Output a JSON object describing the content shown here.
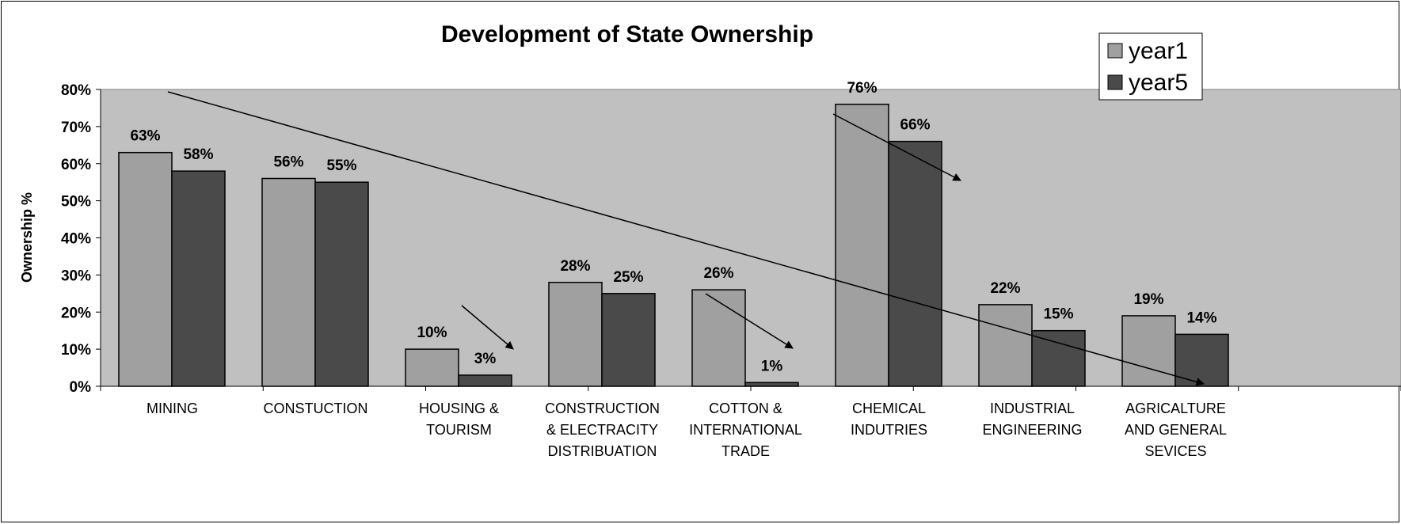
{
  "chart_data": {
    "type": "bar",
    "title": "Development of State Ownership",
    "xlabel": "",
    "ylabel": "Ownership %",
    "ylim": [
      0,
      80
    ],
    "yticks": [
      "0%",
      "10%",
      "20%",
      "30%",
      "40%",
      "50%",
      "60%",
      "70%",
      "80%"
    ],
    "categories": [
      [
        "MINING"
      ],
      [
        "CONSTUCTION"
      ],
      [
        "HOUSING &",
        "TOURISM"
      ],
      [
        "CONSTRUCTION",
        "& ELECTRACITY",
        "DISTRIBUATION"
      ],
      [
        "COTTON &",
        "INTERNATIONAL",
        "TRADE"
      ],
      [
        "CHEMICAL",
        "INDUTRIES"
      ],
      [
        "INDUSTRIAL",
        "ENGINEERING"
      ],
      [
        "AGRICALTURE",
        "AND GENERAL",
        "SEVICES"
      ]
    ],
    "series": [
      {
        "name": "year1",
        "color": "#a0a0a0",
        "values": [
          63,
          56,
          10,
          28,
          26,
          76,
          22,
          19
        ],
        "labels": [
          "63%",
          "56%",
          "10%",
          "28%",
          "26%",
          "76%",
          "22%",
          "19%"
        ]
      },
      {
        "name": "year5",
        "color": "#4a4a4a",
        "values": [
          58,
          55,
          3,
          25,
          1,
          66,
          15,
          14
        ],
        "labels": [
          "58%",
          "55%",
          "3%",
          "25%",
          "1%",
          "66%",
          "15%",
          "14%"
        ]
      }
    ],
    "plot_background": "#c0c0c0",
    "grid": false,
    "legend": "top-right",
    "annotations": [
      "downward trend arrows"
    ]
  }
}
